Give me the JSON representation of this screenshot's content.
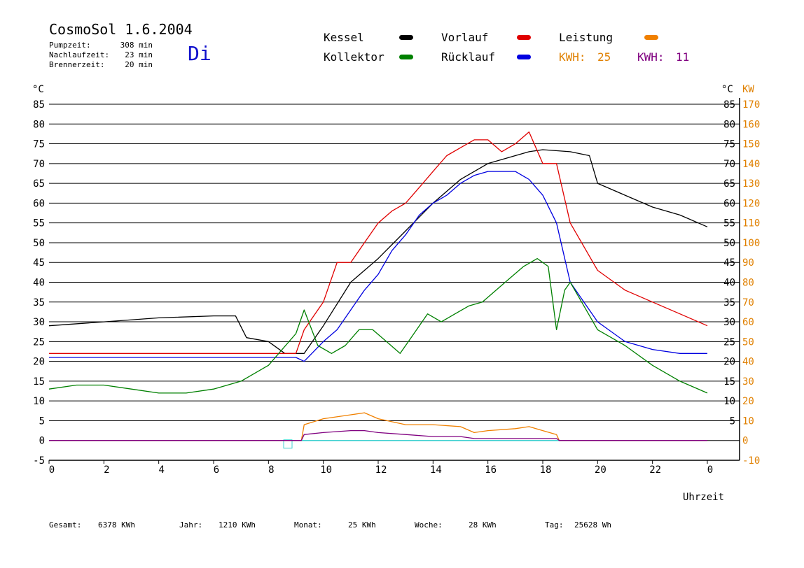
{
  "header": {
    "title": "CosmoSol 1.6.2004",
    "day": "Di",
    "stats": [
      {
        "label": "Pumpzeit:",
        "value": "308 min"
      },
      {
        "label": "Nachlaufzeit:",
        "value": "23 min"
      },
      {
        "label": "Brennerzeit:",
        "value": "20 min"
      }
    ]
  },
  "legend": {
    "kessel": {
      "label": "Kessel",
      "color": "#000000"
    },
    "kollektor": {
      "label": "Kollektor",
      "color": "#008000"
    },
    "vorlauf": {
      "label": "Vorlauf",
      "color": "#e00000"
    },
    "ruecklauf": {
      "label": "Rücklauf",
      "color": "#0000e0"
    },
    "leistung": {
      "label": "Leistung",
      "color": "#f08000"
    },
    "kwh1": {
      "label": "KWH:",
      "value": "25",
      "color": "#e08000"
    },
    "kwh2": {
      "label": "KWH:",
      "value": "11",
      "color": "#800080"
    }
  },
  "footer": [
    {
      "label": "Gesamt:",
      "value": "6378 KWh"
    },
    {
      "label": "Jahr:",
      "value": "1210 KWh"
    },
    {
      "label": "Monat:",
      "value": "25 KWh"
    },
    {
      "label": "Woche:",
      "value": "28 KWh"
    },
    {
      "label": "Tag:",
      "value": "25628 Wh"
    }
  ],
  "chart_data": {
    "type": "line",
    "xlabel": "Uhrzeit",
    "ylabel_left": "°C",
    "ylabel_right_temp": "°C",
    "ylabel_right_power": "KW",
    "xlim": [
      0,
      24
    ],
    "ylim_temp": [
      -5,
      85
    ],
    "ylim_power": [
      -10,
      170
    ],
    "x_ticks": [
      "0",
      "2",
      "4",
      "6",
      "8",
      "10",
      "12",
      "14",
      "16",
      "18",
      "20",
      "22",
      "0"
    ],
    "y_ticks_left": [
      "-5",
      "0",
      "5",
      "10",
      "15",
      "20",
      "25",
      "30",
      "35",
      "40",
      "45",
      "50",
      "55",
      "60",
      "65",
      "70",
      "75",
      "80",
      "85"
    ],
    "y_ticks_right_temp": [
      "5",
      "10",
      "15",
      "20",
      "25",
      "30",
      "35",
      "40",
      "45",
      "50",
      "55",
      "60",
      "65",
      "70",
      "75",
      "80",
      "85"
    ],
    "y_ticks_right_power": [
      "-10",
      "0",
      "10",
      "20",
      "30",
      "40",
      "50",
      "60",
      "70",
      "80",
      "90",
      "100",
      "110",
      "120",
      "130",
      "140",
      "150",
      "160",
      "170"
    ],
    "grid": true,
    "series": [
      {
        "name": "Kessel",
        "color": "#000000",
        "x": [
          0,
          2,
          4,
          6,
          6.8,
          7.2,
          8,
          8.6,
          9.3,
          10,
          11,
          12,
          13,
          14,
          15,
          16,
          17,
          17.5,
          18,
          19,
          19.7,
          20,
          21,
          22,
          23,
          24
        ],
        "y": [
          29,
          30,
          31,
          31.5,
          31.5,
          26,
          25,
          22,
          22,
          29,
          40,
          46,
          53,
          60,
          66,
          70,
          72,
          73,
          73.5,
          73,
          72,
          65,
          62,
          59,
          57,
          54
        ]
      },
      {
        "name": "Vorlauf",
        "color": "#e00000",
        "x": [
          0,
          2,
          4,
          6,
          8,
          9,
          9.3,
          10,
          10.5,
          11,
          11.5,
          12,
          12.5,
          13,
          13.5,
          14,
          14.5,
          15,
          15.5,
          16,
          16.5,
          17,
          17.5,
          18,
          18.5,
          19,
          20,
          21,
          22,
          23,
          24
        ],
        "y": [
          22,
          22,
          22,
          22,
          22,
          22,
          28,
          35,
          45,
          45,
          50,
          55,
          58,
          60,
          64,
          68,
          72,
          74,
          76,
          76,
          73,
          75,
          78,
          70,
          70,
          55,
          43,
          38,
          35,
          32,
          29
        ]
      },
      {
        "name": "Rücklauf",
        "color": "#0000e0",
        "x": [
          0,
          2,
          4,
          6,
          8,
          9,
          9.3,
          10,
          10.5,
          11,
          11.5,
          12,
          12.5,
          13,
          13.5,
          14,
          14.5,
          15,
          15.5,
          16,
          16.5,
          17,
          17.5,
          18,
          18.5,
          19,
          20,
          21,
          22,
          23,
          24
        ],
        "y": [
          21,
          21,
          21,
          21,
          21,
          21,
          20,
          25,
          28,
          33,
          38,
          42,
          48,
          52,
          57,
          60,
          62,
          65,
          67,
          68,
          68,
          68,
          66,
          62,
          55,
          40,
          30,
          25,
          23,
          22,
          22
        ]
      },
      {
        "name": "Kollektor",
        "color": "#008000",
        "x": [
          0,
          1,
          2,
          3,
          4,
          5,
          6,
          7,
          8,
          8.5,
          9,
          9.3,
          9.8,
          10.3,
          10.8,
          11.3,
          11.8,
          12.3,
          12.8,
          13.2,
          13.8,
          14.3,
          14.8,
          15.3,
          15.8,
          16.3,
          16.8,
          17.3,
          17.8,
          18.2,
          18.5,
          18.8,
          19,
          19.5,
          20,
          21,
          22,
          23,
          24
        ],
        "y": [
          13,
          14,
          14,
          13,
          12,
          12,
          13,
          15,
          19,
          23,
          27,
          33,
          24,
          22,
          24,
          28,
          28,
          25,
          22,
          26,
          32,
          30,
          32,
          34,
          35,
          38,
          41,
          44,
          46,
          44,
          28,
          38,
          40,
          34,
          28,
          24,
          19,
          15,
          12
        ]
      },
      {
        "name": "Leistung",
        "color": "#f08000",
        "axis": "power",
        "x": [
          0,
          9.2,
          9.3,
          10,
          11,
          11.5,
          12,
          13,
          14,
          15,
          15.5,
          16,
          17,
          17.5,
          18,
          18.5,
          18.6,
          24
        ],
        "y": [
          0,
          0,
          8,
          11,
          13,
          14,
          11,
          8,
          8,
          7,
          4,
          5,
          6,
          7,
          5,
          3,
          0,
          0
        ]
      },
      {
        "name": "KWH",
        "color": "#800080",
        "axis": "power",
        "x": [
          0,
          9.2,
          9.3,
          10,
          11,
          11.5,
          12,
          13,
          14,
          15,
          15.5,
          16,
          17,
          17.5,
          18,
          18.5,
          18.6,
          24
        ],
        "y": [
          0,
          0,
          3,
          4,
          5,
          5,
          4,
          3,
          2,
          2,
          1,
          1,
          1,
          1,
          1,
          1,
          0,
          0
        ]
      }
    ]
  }
}
